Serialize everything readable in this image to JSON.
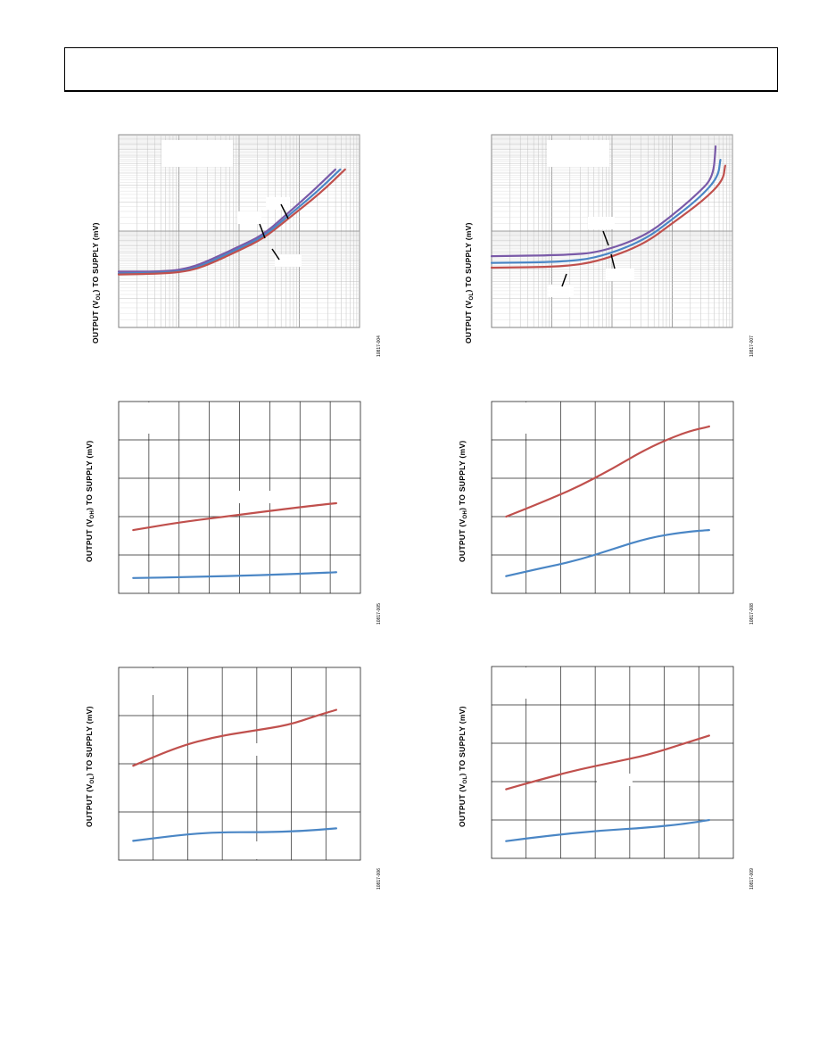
{
  "page": {
    "header_text": ""
  },
  "chart_data": [
    {
      "id": "c1",
      "type": "line",
      "ylabel_parts": [
        "OUTPUT (V",
        "OL",
        ") TO SUPPLY (mV)"
      ],
      "figure_id": "10817-004",
      "xscale": "log",
      "yscale": "log",
      "xlim": [
        0,
        1
      ],
      "ylim": [
        0,
        1
      ],
      "grid": true,
      "series": [
        {
          "color": "#7a5aa8",
          "values": [
            [
              0.0,
              0.29
            ],
            [
              0.2,
              0.29
            ],
            [
              0.3,
              0.31
            ],
            [
              0.38,
              0.35
            ],
            [
              0.5,
              0.42
            ],
            [
              0.6,
              0.48
            ],
            [
              0.7,
              0.59
            ],
            [
              0.8,
              0.7
            ],
            [
              0.9,
              0.82
            ]
          ]
        },
        {
          "color": "#4a86c5",
          "values": [
            [
              0.0,
              0.28
            ],
            [
              0.2,
              0.285
            ],
            [
              0.3,
              0.3
            ],
            [
              0.38,
              0.34
            ],
            [
              0.5,
              0.41
            ],
            [
              0.6,
              0.47
            ],
            [
              0.7,
              0.575
            ],
            [
              0.82,
              0.7
            ],
            [
              0.92,
              0.82
            ]
          ]
        },
        {
          "color": "#c0504d",
          "values": [
            [
              0.0,
              0.275
            ],
            [
              0.2,
              0.28
            ],
            [
              0.3,
              0.295
            ],
            [
              0.38,
              0.33
            ],
            [
              0.5,
              0.4
            ],
            [
              0.6,
              0.46
            ],
            [
              0.7,
              0.56
            ],
            [
              0.84,
              0.7
            ],
            [
              0.94,
              0.82
            ]
          ]
        }
      ]
    },
    {
      "id": "c2",
      "type": "line",
      "ylabel_parts": [
        "OUTPUT (V",
        "OL",
        ") TO SUPPLY (mV)"
      ],
      "figure_id": "10817-007",
      "xscale": "log",
      "yscale": "log",
      "xlim": [
        0,
        1
      ],
      "ylim": [
        0,
        1
      ],
      "grid": true,
      "series": [
        {
          "color": "#7a5aa8",
          "values": [
            [
              0.0,
              0.37
            ],
            [
              0.3,
              0.375
            ],
            [
              0.45,
              0.39
            ],
            [
              0.63,
              0.47
            ],
            [
              0.75,
              0.58
            ],
            [
              0.86,
              0.7
            ],
            [
              0.92,
              0.78
            ],
            [
              0.93,
              0.94
            ]
          ]
        },
        {
          "color": "#4a86c5",
          "values": [
            [
              0.0,
              0.335
            ],
            [
              0.3,
              0.34
            ],
            [
              0.45,
              0.365
            ],
            [
              0.63,
              0.45
            ],
            [
              0.75,
              0.56
            ],
            [
              0.87,
              0.68
            ],
            [
              0.94,
              0.78
            ],
            [
              0.95,
              0.87
            ]
          ]
        },
        {
          "color": "#c0504d",
          "values": [
            [
              0.0,
              0.31
            ],
            [
              0.3,
              0.315
            ],
            [
              0.45,
              0.345
            ],
            [
              0.63,
              0.43
            ],
            [
              0.75,
              0.54
            ],
            [
              0.88,
              0.66
            ],
            [
              0.96,
              0.76
            ],
            [
              0.97,
              0.84
            ]
          ]
        }
      ]
    },
    {
      "id": "c3",
      "type": "line",
      "ylabel_parts": [
        "OUTPUT (V",
        "OH",
        ") TO SUPPLY (mV)"
      ],
      "figure_id": "10817-005",
      "xlim": [
        0,
        1
      ],
      "ylim": [
        0,
        1
      ],
      "grid": true,
      "grid_cols": 8,
      "grid_rows": 5,
      "series": [
        {
          "color": "#c0504d",
          "values": [
            [
              0.06,
              0.33
            ],
            [
              0.25,
              0.37
            ],
            [
              0.5,
              0.41
            ],
            [
              0.75,
              0.45
            ],
            [
              0.9,
              0.47
            ]
          ]
        },
        {
          "color": "#4a86c5",
          "values": [
            [
              0.06,
              0.08
            ],
            [
              0.3,
              0.085
            ],
            [
              0.6,
              0.095
            ],
            [
              0.9,
              0.11
            ]
          ]
        }
      ]
    },
    {
      "id": "c4",
      "type": "line",
      "ylabel_parts": [
        "OUTPUT (V",
        "OH",
        ") TO SUPPLY (mV)"
      ],
      "figure_id": "10817-008",
      "xlim": [
        0,
        1
      ],
      "ylim": [
        0,
        1
      ],
      "grid": true,
      "grid_cols": 7,
      "grid_rows": 5,
      "series": [
        {
          "color": "#c0504d",
          "values": [
            [
              0.06,
              0.4
            ],
            [
              0.2,
              0.47
            ],
            [
              0.35,
              0.55
            ],
            [
              0.5,
              0.65
            ],
            [
              0.65,
              0.76
            ],
            [
              0.8,
              0.84
            ],
            [
              0.9,
              0.87
            ]
          ]
        },
        {
          "color": "#4a86c5",
          "values": [
            [
              0.06,
              0.09
            ],
            [
              0.2,
              0.13
            ],
            [
              0.35,
              0.17
            ],
            [
              0.5,
              0.23
            ],
            [
              0.65,
              0.29
            ],
            [
              0.8,
              0.32
            ],
            [
              0.9,
              0.33
            ]
          ]
        }
      ]
    },
    {
      "id": "c5",
      "type": "line",
      "ylabel_parts": [
        "OUTPUT (V",
        "OL",
        ") TO SUPPLY (mV)"
      ],
      "figure_id": "10817-006",
      "xlim": [
        0,
        1
      ],
      "ylim": [
        0,
        1
      ],
      "grid": true,
      "grid_cols": 7,
      "grid_rows": 4,
      "series": [
        {
          "color": "#c0504d",
          "values": [
            [
              0.06,
              0.49
            ],
            [
              0.25,
              0.59
            ],
            [
              0.4,
              0.64
            ],
            [
              0.55,
              0.67
            ],
            [
              0.7,
              0.7
            ],
            [
              0.82,
              0.75
            ],
            [
              0.9,
              0.78
            ]
          ]
        },
        {
          "color": "#4a86c5",
          "values": [
            [
              0.06,
              0.1
            ],
            [
              0.25,
              0.13
            ],
            [
              0.4,
              0.145
            ],
            [
              0.6,
              0.145
            ],
            [
              0.75,
              0.15
            ],
            [
              0.9,
              0.165
            ]
          ]
        }
      ]
    },
    {
      "id": "c6",
      "type": "line",
      "ylabel_parts": [
        "OUTPUT (V",
        "OL",
        ") TO SUPPLY (mV)"
      ],
      "figure_id": "10817-009",
      "xlim": [
        0,
        1
      ],
      "ylim": [
        0,
        1
      ],
      "grid": true,
      "grid_cols": 7,
      "grid_rows": 5,
      "series": [
        {
          "color": "#c0504d",
          "values": [
            [
              0.06,
              0.36
            ],
            [
              0.2,
              0.41
            ],
            [
              0.35,
              0.46
            ],
            [
              0.5,
              0.5
            ],
            [
              0.65,
              0.54
            ],
            [
              0.8,
              0.6
            ],
            [
              0.9,
              0.64
            ]
          ]
        },
        {
          "color": "#4a86c5",
          "values": [
            [
              0.06,
              0.09
            ],
            [
              0.25,
              0.12
            ],
            [
              0.45,
              0.145
            ],
            [
              0.65,
              0.16
            ],
            [
              0.8,
              0.18
            ],
            [
              0.9,
              0.2
            ]
          ]
        }
      ]
    }
  ]
}
